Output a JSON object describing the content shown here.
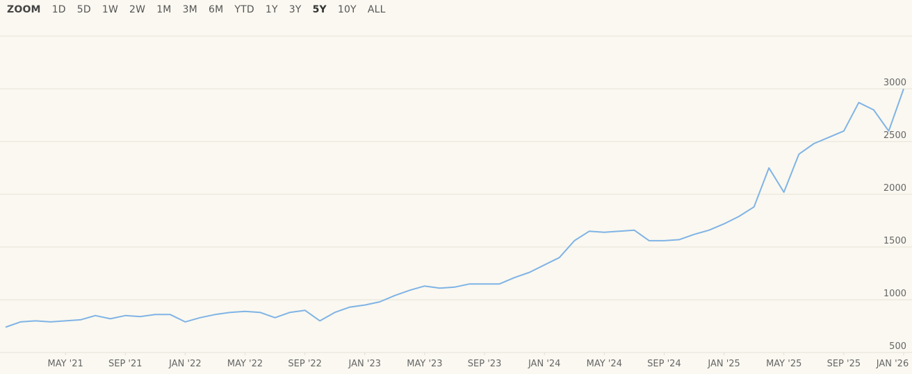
{
  "zoom": {
    "label": "ZOOM",
    "buttons": [
      "1D",
      "5D",
      "1W",
      "2W",
      "1M",
      "3M",
      "6M",
      "YTD",
      "1Y",
      "3Y",
      "5Y",
      "10Y",
      "ALL"
    ],
    "active": "5Y"
  },
  "chart_data": {
    "type": "line",
    "x": [
      "2021-01",
      "2021-02",
      "2021-03",
      "2021-04",
      "2021-05",
      "2021-06",
      "2021-07",
      "2021-08",
      "2021-09",
      "2021-10",
      "2021-11",
      "2021-12",
      "2022-01",
      "2022-02",
      "2022-03",
      "2022-04",
      "2022-05",
      "2022-06",
      "2022-07",
      "2022-08",
      "2022-09",
      "2022-10",
      "2022-11",
      "2022-12",
      "2023-01",
      "2023-02",
      "2023-03",
      "2023-04",
      "2023-05",
      "2023-06",
      "2023-07",
      "2023-08",
      "2023-09",
      "2023-10",
      "2023-11",
      "2023-12",
      "2024-01",
      "2024-02",
      "2024-03",
      "2024-04",
      "2024-05",
      "2024-06",
      "2024-07",
      "2024-08",
      "2024-09",
      "2024-10",
      "2024-11",
      "2024-12",
      "2025-01",
      "2025-02",
      "2025-03",
      "2025-04",
      "2025-05",
      "2025-06",
      "2025-07",
      "2025-08",
      "2025-09",
      "2025-10",
      "2025-11",
      "2025-12",
      "2026-01"
    ],
    "values": [
      740,
      790,
      800,
      790,
      800,
      810,
      850,
      820,
      850,
      840,
      860,
      860,
      790,
      830,
      860,
      880,
      890,
      880,
      830,
      880,
      900,
      800,
      880,
      930,
      950,
      980,
      1040,
      1090,
      1130,
      1110,
      1120,
      1150,
      1150,
      1150,
      1210,
      1260,
      1330,
      1400,
      1560,
      1650,
      1640,
      1650,
      1660,
      1560,
      1560,
      1570,
      1620,
      1660,
      1720,
      1790,
      1880,
      2250,
      2020,
      2380,
      2480,
      2540,
      2600,
      2870,
      2800,
      2600,
      3000
    ],
    "color": "#7fb3e6",
    "xlim": [
      "2021-01",
      "2026-01"
    ],
    "xticks": [
      {
        "value": "2021-05",
        "label": "MAY '21"
      },
      {
        "value": "2021-09",
        "label": "SEP '21"
      },
      {
        "value": "2022-01",
        "label": "JAN '22"
      },
      {
        "value": "2022-05",
        "label": "MAY '22"
      },
      {
        "value": "2022-09",
        "label": "SEP '22"
      },
      {
        "value": "2023-01",
        "label": "JAN '23"
      },
      {
        "value": "2023-05",
        "label": "MAY '23"
      },
      {
        "value": "2023-09",
        "label": "SEP '23"
      },
      {
        "value": "2024-01",
        "label": "JAN '24"
      },
      {
        "value": "2024-05",
        "label": "MAY '24"
      },
      {
        "value": "2024-09",
        "label": "SEP '24"
      },
      {
        "value": "2025-01",
        "label": "JAN '25"
      },
      {
        "value": "2025-05",
        "label": "MAY '25"
      },
      {
        "value": "2025-09",
        "label": "SEP '25"
      },
      {
        "value": "2026-01",
        "label": "JAN '26"
      }
    ],
    "ylim": [
      500,
      3500
    ],
    "yticks": [
      500,
      1000,
      1500,
      2000,
      2500,
      3000
    ],
    "grid": true
  }
}
